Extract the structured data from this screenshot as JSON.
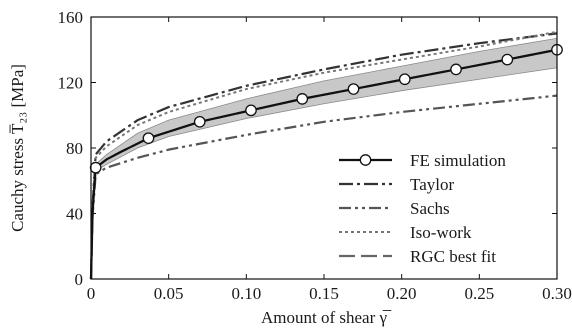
{
  "chart_data": {
    "type": "line",
    "ylabel": "Cauchy stress T̅₂₃ [MPa]",
    "xlabel": "Amount of shear γ̅",
    "xlim": [
      0,
      0.3
    ],
    "ylim": [
      0,
      160
    ],
    "x_ticks": [
      "0",
      "0.05",
      "0.10",
      "0.15",
      "0.20",
      "0.25",
      "0.30"
    ],
    "x_tick_values": [
      0,
      0.05,
      0.1,
      0.15,
      0.2,
      0.25,
      0.3
    ],
    "y_ticks": [
      "0",
      "40",
      "80",
      "120",
      "160"
    ],
    "y_tick_values": [
      0,
      40,
      80,
      120,
      160
    ],
    "grid": false,
    "legend_position": "bottom-right",
    "band": {
      "x": [
        0,
        0.001,
        0.003,
        0.01,
        0.03,
        0.05,
        0.1,
        0.15,
        0.2,
        0.25,
        0.3
      ],
      "upper": [
        0,
        42,
        70,
        76,
        89,
        97,
        110,
        121,
        130,
        139,
        147
      ],
      "lower": [
        0,
        40,
        66,
        70,
        80,
        87,
        98,
        107,
        115,
        122,
        129
      ]
    },
    "series": [
      {
        "name": "FE simulation",
        "style": "solid-markers",
        "color": "#111111",
        "x": [
          0,
          0.001,
          0.003,
          0.01,
          0.02,
          0.037,
          0.07,
          0.103,
          0.136,
          0.169,
          0.202,
          0.235,
          0.268,
          0.3
        ],
        "y": [
          0,
          41,
          68,
          73,
          78,
          86,
          96,
          103,
          110,
          116,
          122,
          128,
          134,
          140
        ],
        "markers_x": [
          0.003,
          0.037,
          0.07,
          0.103,
          0.136,
          0.169,
          0.202,
          0.235,
          0.268,
          0.3
        ],
        "markers_y": [
          68,
          86,
          96,
          103,
          110,
          116,
          122,
          128,
          134,
          140
        ]
      },
      {
        "name": "Taylor",
        "style": "dash-dot",
        "color": "#333333",
        "x": [
          0,
          0.001,
          0.003,
          0.01,
          0.03,
          0.05,
          0.1,
          0.15,
          0.2,
          0.25,
          0.3
        ],
        "y": [
          0,
          45,
          76,
          84,
          97,
          105,
          118,
          128,
          137,
          144,
          150
        ]
      },
      {
        "name": "Sachs",
        "style": "dash-dot-dot",
        "color": "#555555",
        "x": [
          0,
          0.001,
          0.003,
          0.01,
          0.03,
          0.05,
          0.1,
          0.15,
          0.2,
          0.25,
          0.3
        ],
        "y": [
          0,
          38,
          64,
          68,
          74,
          79,
          88,
          96,
          102,
          107,
          112
        ]
      },
      {
        "name": "Iso-work",
        "style": "dotted",
        "color": "#777777",
        "x": [
          0,
          0.001,
          0.003,
          0.01,
          0.03,
          0.05,
          0.1,
          0.15,
          0.2,
          0.25,
          0.3
        ],
        "y": [
          0,
          44,
          74,
          81,
          94,
          102,
          116,
          126,
          134,
          142,
          151
        ]
      },
      {
        "name": "RGC best fit",
        "style": "long-dash",
        "color": "#666666",
        "x": [
          0,
          0.001,
          0.003,
          0.01,
          0.02,
          0.037,
          0.07,
          0.103,
          0.136,
          0.169,
          0.202,
          0.235,
          0.268,
          0.3
        ],
        "y": [
          0,
          41,
          68,
          73,
          78,
          86,
          96,
          103,
          110,
          116,
          122,
          128,
          134,
          140
        ]
      }
    ]
  }
}
